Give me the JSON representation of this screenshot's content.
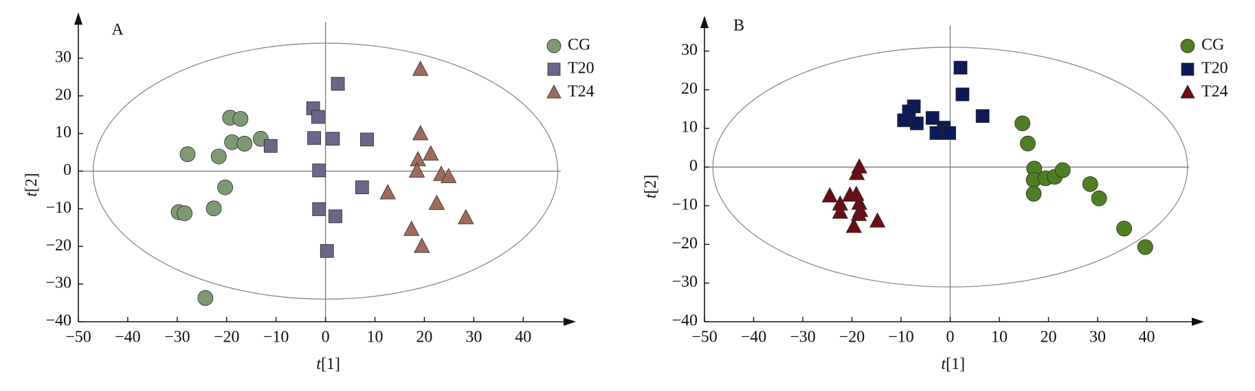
{
  "chart_data": [
    {
      "type": "scatter",
      "title": "A",
      "xlabel": "t[1]",
      "ylabel": "t[2]",
      "xlim": [
        -50,
        49
      ],
      "ylim": [
        -40,
        40
      ],
      "xticks": [
        {
          "value": -50,
          "label": "−50"
        },
        {
          "value": -40,
          "label": "−40"
        },
        {
          "value": -30,
          "label": "−30"
        },
        {
          "value": -20,
          "label": "−20"
        },
        {
          "value": -10,
          "label": "−10"
        },
        0,
        10,
        20,
        30,
        40
      ],
      "yticks": [
        {
          "value": -40,
          "label": "−40"
        },
        {
          "value": -30,
          "label": "−30"
        },
        {
          "value": -20,
          "label": "−20"
        },
        {
          "value": -10,
          "label": "−10"
        },
        0,
        10,
        20,
        30
      ],
      "ellipse": {
        "rx": 47,
        "ry": 34
      },
      "series": [
        {
          "name": "CG",
          "color": "#7d9a74",
          "marker": "circle",
          "x": [
            -19.3,
            -17.2,
            -18.9,
            -16.4,
            -13.1,
            -27.9,
            -21.6,
            -20.3,
            -22.6,
            -29.7,
            -28.5,
            -24.3
          ],
          "values": [
            14.2,
            13.9,
            7.7,
            7.3,
            8.6,
            4.5,
            3.9,
            -4.3,
            -9.9,
            -10.9,
            -11.2,
            -33.7
          ]
        },
        {
          "name": "T20",
          "color": "#6b6788",
          "marker": "square",
          "x": [
            2.5,
            -2.5,
            -1.5,
            -11.1,
            -2.3,
            1.5,
            8.4,
            -1.3,
            -1.3,
            2.0,
            0.3,
            7.4
          ],
          "values": [
            23.2,
            16.7,
            14.4,
            6.7,
            8.8,
            8.6,
            8.4,
            0.2,
            -10.1,
            -12.0,
            -21.2,
            -4.3
          ]
        },
        {
          "name": "T24",
          "color": "#a06a5a",
          "marker": "triangle",
          "x": [
            19.2,
            19.2,
            21.3,
            18.7,
            18.5,
            23.4,
            24.9,
            12.6,
            22.5,
            28.4,
            17.4,
            19.5
          ],
          "values": [
            27.0,
            9.9,
            4.5,
            3.0,
            0,
            -0.9,
            -1.5,
            -5.8,
            -8.6,
            -12.4,
            -15.5,
            -20.0
          ]
        }
      ]
    },
    {
      "type": "scatter",
      "title": "B",
      "xlabel": "t[1]",
      "ylabel": "t[2]",
      "xlim": [
        -50,
        50
      ],
      "ylim": [
        -40,
        37
      ],
      "xticks": [
        {
          "value": -50,
          "label": "−50"
        },
        {
          "value": -40,
          "label": "−40"
        },
        {
          "value": -30,
          "label": "−30"
        },
        {
          "value": -20,
          "label": "−20"
        },
        {
          "value": -10,
          "label": "−10"
        },
        0,
        10,
        20,
        30,
        40
      ],
      "yticks": [
        {
          "value": -40,
          "label": "−40"
        },
        {
          "value": -30,
          "label": "−30"
        },
        {
          "value": -20,
          "label": "−20"
        },
        {
          "value": -10,
          "label": "−10"
        },
        0,
        10,
        20,
        30
      ],
      "ellipse": {
        "rx": 48.3,
        "ry": 31
      },
      "series": [
        {
          "name": "CG",
          "color": "#4f7f22",
          "marker": "circle",
          "x": [
            14.7,
            15.8,
            17.1,
            17.0,
            17.0,
            19.4,
            21.3,
            22.9,
            28.5,
            30.3,
            35.4,
            39.7
          ],
          "values": [
            11.3,
            6.1,
            -0.4,
            -3.3,
            -6.9,
            -2.9,
            -2.5,
            -0.8,
            -4.4,
            -8.1,
            -15.9,
            -20.7
          ]
        },
        {
          "name": "T20",
          "color": "#0d1a56",
          "marker": "square",
          "x": [
            2.1,
            2.5,
            6.6,
            -7.4,
            -8.4,
            -3.6,
            -9.4,
            -6.8,
            -1.3,
            -2.8,
            -0.2
          ],
          "values": [
            25.7,
            18.8,
            13.2,
            15.7,
            14.4,
            12.7,
            12.1,
            11.3,
            10.2,
            8.8,
            8.8
          ]
        },
        {
          "name": "T24",
          "color": "#6b0d14",
          "marker": "triangle",
          "x": [
            -18.5,
            -19.0,
            -24.5,
            -20.4,
            -22.4,
            -18.5,
            -18.3,
            -22.4,
            -18.6,
            -14.8,
            -19.6,
            -19.1
          ],
          "values": [
            0,
            -1.7,
            -7.5,
            -7.3,
            -9.6,
            -9.4,
            -11.3,
            -11.7,
            -12.3,
            -14.0,
            -15.4,
            -7.1
          ]
        }
      ]
    }
  ]
}
